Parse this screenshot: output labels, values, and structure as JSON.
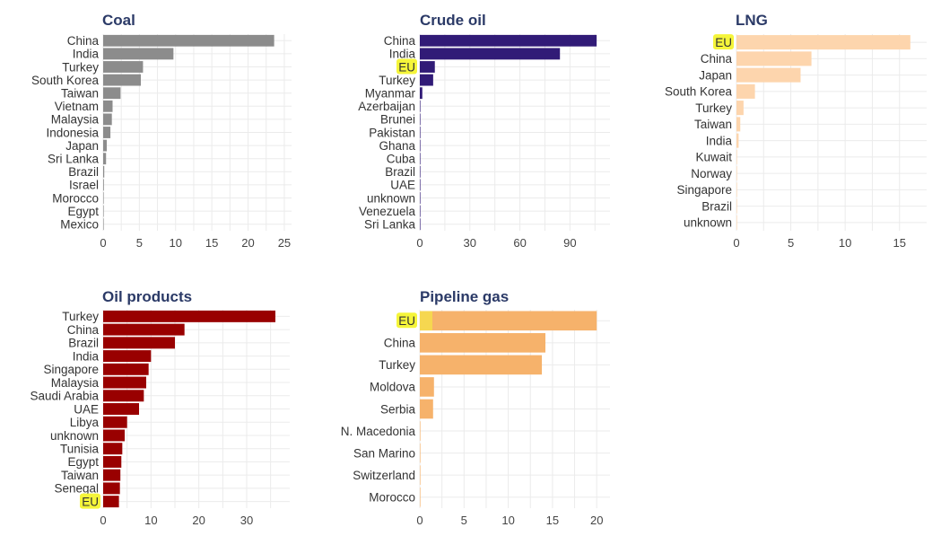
{
  "colors": {
    "title": "#2b3a67",
    "highlight": "#f5f53a",
    "grid": "#ebebeb"
  },
  "chart_data": [
    {
      "type": "bar",
      "orientation": "horizontal",
      "title": "Coal",
      "color": "#8c8c8c",
      "categories": [
        "China",
        "India",
        "Turkey",
        "South Korea",
        "Taiwan",
        "Vietnam",
        "Malaysia",
        "Indonesia",
        "Japan",
        "Sri Lanka",
        "Brazil",
        "Israel",
        "Morocco",
        "Egypt",
        "Mexico"
      ],
      "values": [
        23.6,
        9.7,
        5.5,
        5.2,
        2.4,
        1.3,
        1.2,
        1.0,
        0.5,
        0.4,
        0.15,
        0.1,
        0.05,
        0.03,
        0.02
      ],
      "xlim": [
        0,
        26
      ],
      "xticks": [
        0,
        5,
        10,
        15,
        20,
        25
      ],
      "highlight": []
    },
    {
      "type": "bar",
      "orientation": "horizontal",
      "title": "Crude oil",
      "color": "#311b77",
      "categories": [
        "China",
        "India",
        "EU",
        "Turkey",
        "Myanmar",
        "Azerbaijan",
        "Brunei",
        "Pakistan",
        "Ghana",
        "Cuba",
        "Brazil",
        "UAE",
        "unknown",
        "Venezuela",
        "Sri Lanka"
      ],
      "values": [
        106,
        84,
        9,
        8,
        1.5,
        0.3,
        0.1,
        0.1,
        0.05,
        0.05,
        0.04,
        0.03,
        0.02,
        0.02,
        0.01
      ],
      "xlim": [
        0,
        114
      ],
      "xticks": [
        0,
        30,
        60,
        90
      ],
      "highlight": [
        "EU"
      ]
    },
    {
      "type": "bar",
      "orientation": "horizontal",
      "title": "LNG",
      "color": "#fdd5ad",
      "categories": [
        "EU",
        "China",
        "Japan",
        "South Korea",
        "Turkey",
        "Taiwan",
        "India",
        "Kuwait",
        "Norway",
        "Singapore",
        "Brazil",
        "unknown"
      ],
      "values": [
        16.0,
        6.9,
        5.9,
        1.7,
        0.65,
        0.35,
        0.2,
        0.03,
        0.02,
        0.02,
        0.01,
        0.01
      ],
      "xlim": [
        0,
        17.5
      ],
      "xticks": [
        0,
        5,
        10,
        15
      ],
      "highlight": [
        "EU"
      ]
    },
    {
      "type": "bar",
      "orientation": "horizontal",
      "title": "Oil products",
      "color": "#990000",
      "categories": [
        "Turkey",
        "China",
        "Brazil",
        "India",
        "Singapore",
        "Malaysia",
        "Saudi Arabia",
        "UAE",
        "Libya",
        "unknown",
        "Tunisia",
        "Egypt",
        "Taiwan",
        "Senegal",
        "EU"
      ],
      "values": [
        36,
        17,
        15,
        10,
        9.5,
        9,
        8.5,
        7.5,
        5,
        4.5,
        4,
        3.8,
        3.6,
        3.5,
        3.3
      ],
      "xlim": [
        0,
        39
      ],
      "xticks": [
        0,
        10,
        20,
        30
      ],
      "highlight": [
        "EU"
      ]
    },
    {
      "type": "bar",
      "orientation": "horizontal",
      "title": "Pipeline gas",
      "color": "#f6b26b",
      "categories": [
        "EU",
        "China",
        "Turkey",
        "Moldova",
        "Serbia",
        "N. Macedonia",
        "San Marino",
        "Switzerland",
        "Morocco"
      ],
      "values": [
        20,
        14.2,
        13.8,
        1.6,
        1.5,
        0.05,
        0.02,
        0.02,
        0.01
      ],
      "xlim": [
        0,
        21.5
      ],
      "xticks": [
        0,
        5,
        10,
        15,
        20
      ],
      "highlight": [
        "EU"
      ]
    }
  ]
}
